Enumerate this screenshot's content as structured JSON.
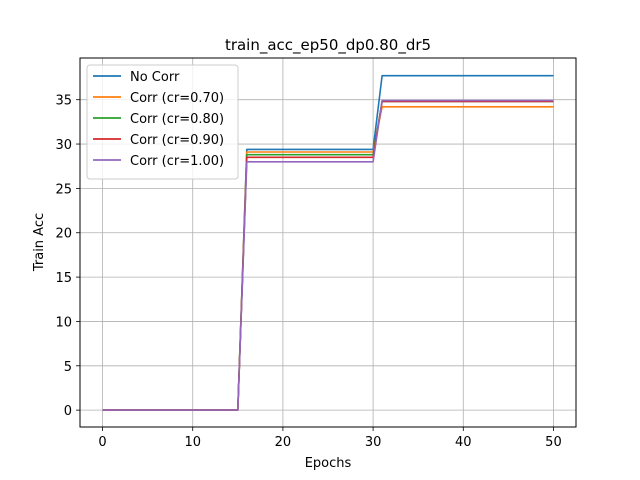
{
  "chart_data": {
    "type": "line",
    "title": "train_acc_ep50_dp0.80_dr5",
    "xlabel": "Epochs",
    "ylabel": "Train Acc",
    "xlim": [
      -2.5,
      52.5
    ],
    "ylim": [
      -1.9,
      39.7
    ],
    "xticks": [
      0,
      10,
      20,
      30,
      40,
      50
    ],
    "yticks": [
      0,
      5,
      10,
      15,
      20,
      25,
      30,
      35
    ],
    "grid": true,
    "legend_position": "top-left",
    "series": [
      {
        "name": "No Corr",
        "color": "#1f77b4",
        "x": [
          0,
          15,
          16,
          30,
          31,
          50
        ],
        "y": [
          0,
          0,
          29.4,
          29.4,
          37.7,
          37.7
        ]
      },
      {
        "name": "Corr (cr=0.70)",
        "color": "#ff7f0e",
        "x": [
          0,
          15,
          16,
          30,
          31,
          50
        ],
        "y": [
          0,
          0,
          29.1,
          29.1,
          34.2,
          34.2
        ]
      },
      {
        "name": "Corr (cr=0.80)",
        "color": "#2ca02c",
        "x": [
          0,
          15,
          16,
          30,
          31,
          50
        ],
        "y": [
          0,
          0,
          28.8,
          28.8,
          34.8,
          34.8
        ]
      },
      {
        "name": "Corr (cr=0.90)",
        "color": "#d62728",
        "x": [
          0,
          15,
          16,
          30,
          31,
          50
        ],
        "y": [
          0,
          0,
          28.5,
          28.5,
          34.8,
          34.8
        ]
      },
      {
        "name": "Corr (cr=1.00)",
        "color": "#9467bd",
        "x": [
          0,
          15,
          16,
          30,
          31,
          50
        ],
        "y": [
          0,
          0,
          28.0,
          28.0,
          34.9,
          34.9
        ]
      }
    ]
  }
}
